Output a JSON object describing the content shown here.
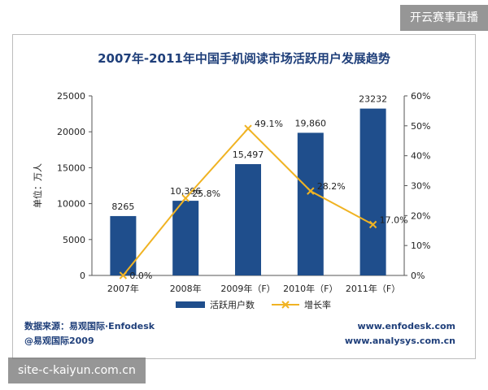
{
  "overlay": {
    "top_right": "开云赛事直播",
    "bottom_left": "site-c-kaiyun.com.cn"
  },
  "footer": {
    "source": "数据来源：易观国际·Enfodesk",
    "copyright": "@易观国际2009",
    "url1": "www.enfodesk.com",
    "url2": "www.analysys.com.cn"
  },
  "colors": {
    "bar": "#1f4e8c",
    "line": "#f0b323",
    "title": "#1f3f7a"
  },
  "chart_data": {
    "type": "bar",
    "title": "2007年-2011年中国手机阅读市场活跃用户发展趋势",
    "ylabel": "单位：万人",
    "categories": [
      "2007年",
      "2008年",
      "2009年（F）",
      "2010年（F）",
      "2011年（F）"
    ],
    "ylim": [
      0,
      25000
    ],
    "yticks": [
      "0",
      "5000",
      "10000",
      "15000",
      "20000",
      "25000"
    ],
    "y2lim": [
      0,
      60
    ],
    "y2ticks": [
      "0%",
      "10%",
      "20%",
      "30%",
      "40%",
      "50%",
      "60%"
    ],
    "series": [
      {
        "name": "活跃用户数",
        "type": "bar",
        "values": [
          8265,
          10396,
          15497,
          19860,
          23232
        ],
        "labels": [
          "8265",
          "10,396",
          "15,497",
          "19,860",
          "23232"
        ]
      },
      {
        "name": "增长率",
        "type": "line",
        "axis": "right",
        "values": [
          0.0,
          25.8,
          49.1,
          28.2,
          17.0
        ],
        "labels": [
          "0.0%",
          "25.8%",
          "49.1%",
          "28.2%",
          "17.0%"
        ]
      }
    ],
    "legend_position": "bottom"
  }
}
